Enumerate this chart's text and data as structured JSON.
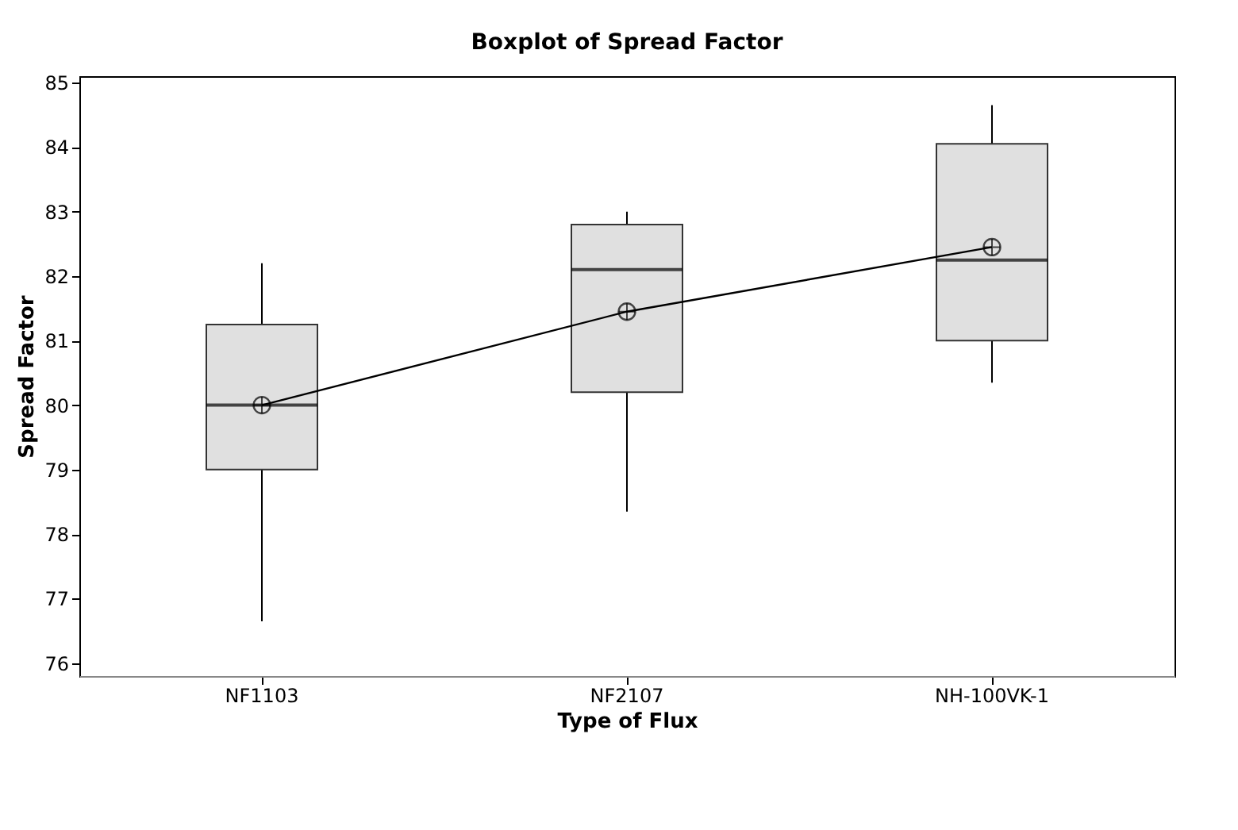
{
  "chart_data": {
    "type": "box",
    "title": "Boxplot of Spread Factor",
    "xlabel": "Type of Flux",
    "ylabel": "Spread Factor",
    "categories": [
      "NF1103",
      "NF2107",
      "NH-100VK-1"
    ],
    "boxes": [
      {
        "low": 76.65,
        "q1": 79.0,
        "median": 80.0,
        "q3": 81.25,
        "high": 82.2
      },
      {
        "low": 78.35,
        "q1": 80.2,
        "median": 82.1,
        "q3": 82.8,
        "high": 83.0
      },
      {
        "low": 80.35,
        "q1": 81.0,
        "median": 82.25,
        "q3": 84.05,
        "high": 84.65
      }
    ],
    "series": [
      {
        "type": "line",
        "color": "#000000",
        "marker": "circle",
        "values": [
          80.0,
          81.45,
          82.45
        ]
      }
    ],
    "color": "#e0e0e0",
    "ylim": [
      75.8,
      85.1
    ],
    "yticks": [
      76,
      77,
      78,
      79,
      80,
      81,
      82,
      83,
      84,
      85
    ],
    "grid": false
  }
}
